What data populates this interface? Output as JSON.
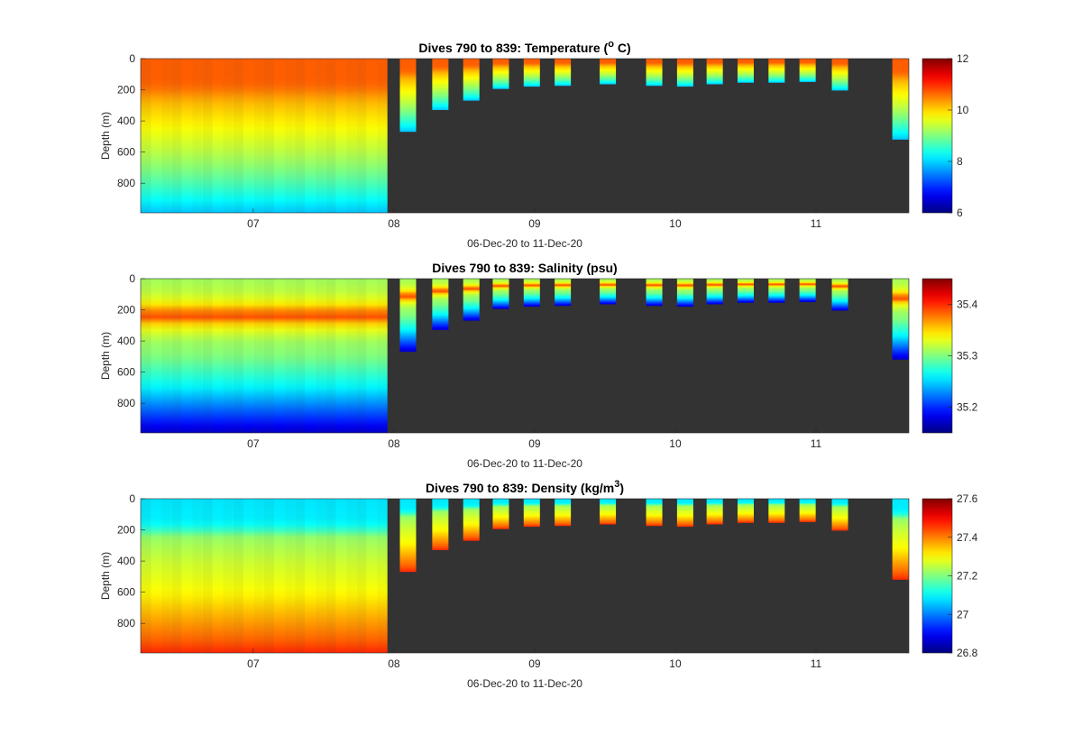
{
  "chart_data": [
    {
      "type": "heatmap",
      "title": "Dives 790 to 839: Temperature (",
      "title_sup": "o",
      "title_tail": " C)",
      "xlabel": "06-Dec-20 to 11-Dec-20",
      "ylabel": "Depth (m)",
      "x_ticks": [
        "07",
        "08",
        "09",
        "10",
        "11"
      ],
      "x_tick_values": [
        7,
        8,
        9,
        10,
        11
      ],
      "xlim": [
        6.2,
        11.66
      ],
      "y_ticks": [
        0,
        200,
        400,
        600,
        800
      ],
      "ylim": [
        0,
        990
      ],
      "y_reversed": true,
      "colorbar": {
        "range": [
          6,
          12
        ],
        "ticks": [
          6,
          8,
          10,
          12
        ],
        "tick_labels": [
          "6",
          "8",
          "10",
          "12"
        ]
      },
      "background_color": "#333333",
      "colormap": "jet",
      "dense_segment": {
        "x_range": [
          6.2,
          7.95
        ],
        "max_depth": 990,
        "profiles": 24
      },
      "profile_depth_values": [
        0,
        150,
        200,
        250,
        300,
        400,
        500,
        600,
        700,
        800,
        900,
        990
      ],
      "profile_values": [
        10.7,
        10.7,
        10.55,
        10.3,
        10.1,
        9.85,
        9.6,
        9.35,
        9.05,
        8.7,
        8.3,
        7.9
      ],
      "dives": [
        {
          "x": 8.1,
          "max_depth": 470
        },
        {
          "x": 8.33,
          "max_depth": 330
        },
        {
          "x": 8.55,
          "max_depth": 270
        },
        {
          "x": 8.76,
          "max_depth": 195
        },
        {
          "x": 8.98,
          "max_depth": 180
        },
        {
          "x": 9.2,
          "max_depth": 175
        },
        {
          "x": 9.52,
          "max_depth": 165
        },
        {
          "x": 9.85,
          "max_depth": 175
        },
        {
          "x": 10.07,
          "max_depth": 180
        },
        {
          "x": 10.28,
          "max_depth": 165
        },
        {
          "x": 10.5,
          "max_depth": 155
        },
        {
          "x": 10.72,
          "max_depth": 155
        },
        {
          "x": 10.94,
          "max_depth": 150
        },
        {
          "x": 11.17,
          "max_depth": 205
        },
        {
          "x": 11.6,
          "max_depth": 520
        }
      ]
    },
    {
      "type": "heatmap",
      "title": "Dives 790 to 839: Salinity (psu)",
      "title_sup": "",
      "title_tail": "",
      "xlabel": "06-Dec-20 to 11-Dec-20",
      "ylabel": "Depth (m)",
      "x_ticks": [
        "07",
        "08",
        "09",
        "10",
        "11"
      ],
      "x_tick_values": [
        7,
        8,
        9,
        10,
        11
      ],
      "xlim": [
        6.2,
        11.66
      ],
      "y_ticks": [
        0,
        200,
        400,
        600,
        800
      ],
      "ylim": [
        0,
        990
      ],
      "y_reversed": true,
      "colorbar": {
        "range": [
          35.15,
          35.45
        ],
        "ticks": [
          35.2,
          35.3,
          35.4
        ],
        "tick_labels": [
          "35.2",
          "35.3",
          "35.4"
        ]
      },
      "background_color": "#333333",
      "colormap": "jet",
      "dense_segment": {
        "x_range": [
          6.2,
          7.95
        ],
        "max_depth": 990,
        "profiles": 24
      },
      "profile_depth_values": [
        0,
        100,
        160,
        200,
        250,
        300,
        400,
        500,
        600,
        700,
        800,
        900,
        990
      ],
      "profile_values": [
        35.31,
        35.32,
        35.34,
        35.37,
        35.39,
        35.34,
        35.31,
        35.3,
        35.28,
        35.26,
        35.23,
        35.2,
        35.17
      ],
      "dives": [
        {
          "x": 8.1,
          "max_depth": 470
        },
        {
          "x": 8.33,
          "max_depth": 330
        },
        {
          "x": 8.55,
          "max_depth": 270
        },
        {
          "x": 8.76,
          "max_depth": 195
        },
        {
          "x": 8.98,
          "max_depth": 180
        },
        {
          "x": 9.2,
          "max_depth": 175
        },
        {
          "x": 9.52,
          "max_depth": 165
        },
        {
          "x": 9.85,
          "max_depth": 175
        },
        {
          "x": 10.07,
          "max_depth": 180
        },
        {
          "x": 10.28,
          "max_depth": 165
        },
        {
          "x": 10.5,
          "max_depth": 155
        },
        {
          "x": 10.72,
          "max_depth": 155
        },
        {
          "x": 10.94,
          "max_depth": 150
        },
        {
          "x": 11.17,
          "max_depth": 205
        },
        {
          "x": 11.6,
          "max_depth": 520
        }
      ]
    },
    {
      "type": "heatmap",
      "title": "Dives 790 to 839: Density (kg/m",
      "title_sup": "3",
      "title_tail": ")",
      "xlabel": "06-Dec-20 to 11-Dec-20",
      "ylabel": "Depth (m)",
      "x_ticks": [
        "07",
        "08",
        "09",
        "10",
        "11"
      ],
      "x_tick_values": [
        7,
        8,
        9,
        10,
        11
      ],
      "xlim": [
        6.2,
        11.66
      ],
      "y_ticks": [
        0,
        200,
        400,
        600,
        800
      ],
      "ylim": [
        0,
        990
      ],
      "y_reversed": true,
      "colorbar": {
        "range": [
          26.8,
          27.6
        ],
        "ticks": [
          26.8,
          27,
          27.2,
          27.4,
          27.6
        ],
        "tick_labels": [
          "26.8",
          "27",
          "27.2",
          "27.4",
          "27.6"
        ]
      },
      "background_color": "#333333",
      "colormap": "jet",
      "dense_segment": {
        "x_range": [
          6.2,
          7.95
        ],
        "max_depth": 990,
        "profiles": 24
      },
      "profile_depth_values": [
        0,
        150,
        200,
        250,
        400,
        500,
        600,
        700,
        800,
        900,
        990
      ],
      "profile_values": [
        27.08,
        27.09,
        27.14,
        27.22,
        27.26,
        27.28,
        27.3,
        27.34,
        27.38,
        27.42,
        27.47
      ],
      "dives": [
        {
          "x": 8.1,
          "max_depth": 470
        },
        {
          "x": 8.33,
          "max_depth": 330
        },
        {
          "x": 8.55,
          "max_depth": 270
        },
        {
          "x": 8.76,
          "max_depth": 195
        },
        {
          "x": 8.98,
          "max_depth": 180
        },
        {
          "x": 9.2,
          "max_depth": 175
        },
        {
          "x": 9.52,
          "max_depth": 165
        },
        {
          "x": 9.85,
          "max_depth": 175
        },
        {
          "x": 10.07,
          "max_depth": 180
        },
        {
          "x": 10.28,
          "max_depth": 165
        },
        {
          "x": 10.5,
          "max_depth": 155
        },
        {
          "x": 10.72,
          "max_depth": 155
        },
        {
          "x": 10.94,
          "max_depth": 150
        },
        {
          "x": 11.17,
          "max_depth": 205
        },
        {
          "x": 11.6,
          "max_depth": 520
        }
      ]
    }
  ]
}
